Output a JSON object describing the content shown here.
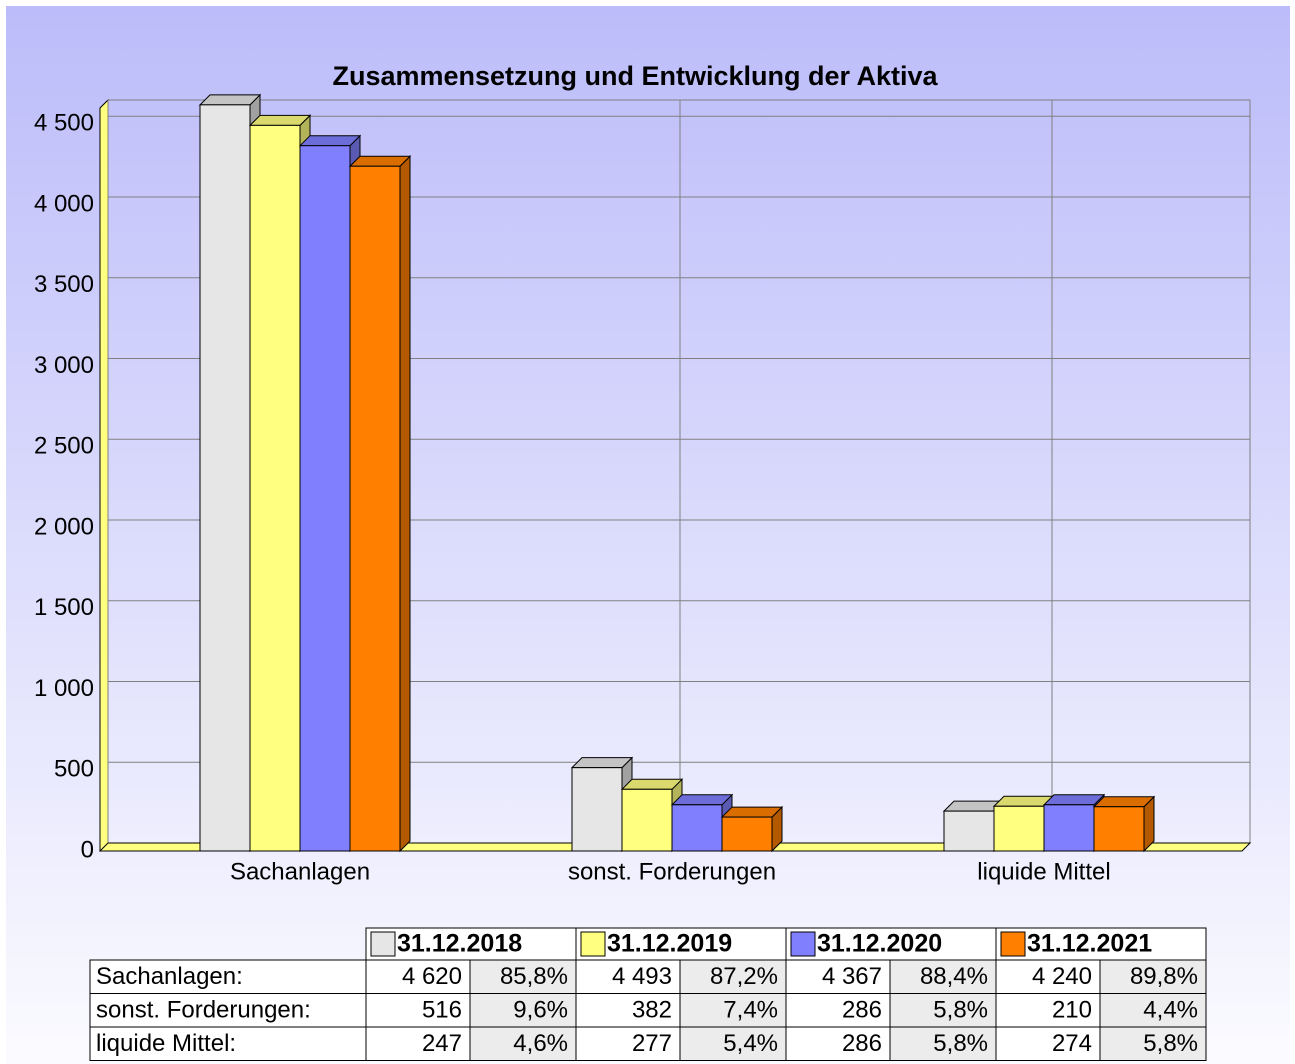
{
  "chart_data": {
    "type": "bar",
    "title": "Zusammensetzung und Entwicklung der Aktiva",
    "categories": [
      "Sachanlagen",
      "sonst. Forderungen",
      "liquide Mittel"
    ],
    "row_labels": [
      "Sachanlagen:",
      "sonst. Forderungen:",
      "liquide Mittel:"
    ],
    "series": [
      {
        "name": "31.12.2018",
        "color": "#e6e6e6",
        "values": [
          4620,
          516,
          247
        ],
        "value_labels": [
          "4 620",
          "516",
          "247"
        ],
        "shares": [
          85.8,
          9.6,
          4.6
        ],
        "share_labels": [
          "85,8%",
          "9,6%",
          "4,6%"
        ]
      },
      {
        "name": "31.12.2019",
        "color": "#ffff80",
        "values": [
          4493,
          382,
          277
        ],
        "value_labels": [
          "4 493",
          "382",
          "277"
        ],
        "shares": [
          87.2,
          7.4,
          5.4
        ],
        "share_labels": [
          "87,2%",
          "7,4%",
          "5,4%"
        ]
      },
      {
        "name": "31.12.2020",
        "color": "#8080ff",
        "values": [
          4367,
          286,
          286
        ],
        "value_labels": [
          "4 367",
          "286",
          "286"
        ],
        "shares": [
          88.4,
          5.8,
          5.8
        ],
        "share_labels": [
          "88,4%",
          "5,8%",
          "5,8%"
        ]
      },
      {
        "name": "31.12.2021",
        "color": "#ff8000",
        "values": [
          4240,
          210,
          274
        ],
        "value_labels": [
          "4 240",
          "210",
          "274"
        ],
        "shares": [
          89.8,
          4.4,
          5.8
        ],
        "share_labels": [
          "89,8%",
          "4,4%",
          "5,8%"
        ]
      }
    ],
    "ylim": [
      0,
      4650
    ],
    "yticks": [
      0,
      500,
      {
        "value": 1000,
        "label": "1 000"
      },
      {
        "value": 1500,
        "label": "1 500"
      },
      {
        "value": 2000,
        "label": "2 000"
      },
      {
        "value": 2500,
        "label": "2 500"
      },
      {
        "value": 3000,
        "label": "3 000"
      },
      {
        "value": 3500,
        "label": "3 500"
      },
      {
        "value": 4000,
        "label": "4 000"
      },
      {
        "value": 4500,
        "label": "4 500"
      }
    ],
    "grid": true
  }
}
